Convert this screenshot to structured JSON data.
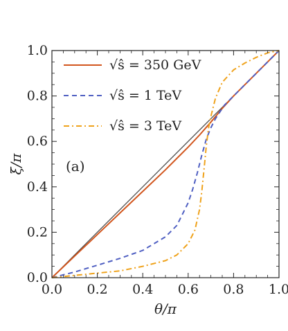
{
  "chart_data": {
    "type": "line",
    "title": "",
    "xlabel": "θ/π",
    "ylabel": "ξ/π",
    "xlim": [
      0,
      1
    ],
    "ylim": [
      0,
      1
    ],
    "xticks": [
      "0.0",
      "0.2",
      "0.4",
      "0.6",
      "0.8",
      "1.0"
    ],
    "yticks": [
      "0.0",
      "0.2",
      "0.4",
      "0.6",
      "0.8",
      "1.0"
    ],
    "annotation": "(a)",
    "legend_position": "top-left",
    "grid": false,
    "reference_line": {
      "x": [
        0,
        1
      ],
      "y": [
        0,
        1
      ],
      "color": "#444444"
    },
    "series": [
      {
        "name": "√ŝ = 350 GeV",
        "style": "solid",
        "color": "#d2561e",
        "x": [
          0.0,
          0.1,
          0.2,
          0.3,
          0.4,
          0.5,
          0.6,
          0.65,
          0.7,
          0.75,
          0.8,
          0.9,
          1.0
        ],
        "y": [
          0.0,
          0.095,
          0.19,
          0.285,
          0.38,
          0.475,
          0.575,
          0.628,
          0.685,
          0.745,
          0.8,
          0.9,
          1.0
        ]
      },
      {
        "name": "√ŝ = 1 TeV",
        "style": "dashed",
        "color": "#4f5fc2",
        "x": [
          0.0,
          0.1,
          0.2,
          0.3,
          0.4,
          0.5,
          0.55,
          0.6,
          0.62,
          0.64,
          0.66,
          0.68,
          0.7,
          0.72,
          0.74,
          0.76,
          0.8,
          0.85,
          0.9,
          0.95,
          1.0
        ],
        "y": [
          0.0,
          0.025,
          0.055,
          0.085,
          0.12,
          0.18,
          0.23,
          0.33,
          0.39,
          0.46,
          0.54,
          0.61,
          0.66,
          0.7,
          0.73,
          0.76,
          0.8,
          0.85,
          0.9,
          0.95,
          1.0
        ]
      },
      {
        "name": "√ŝ = 3 TeV",
        "style": "dash-dot",
        "color": "#efa21b",
        "x": [
          0.0,
          0.1,
          0.2,
          0.3,
          0.4,
          0.5,
          0.55,
          0.6,
          0.63,
          0.65,
          0.66,
          0.67,
          0.68,
          0.69,
          0.7,
          0.72,
          0.75,
          0.8,
          0.85,
          0.9,
          0.95,
          1.0
        ],
        "y": [
          0.0,
          0.01,
          0.02,
          0.03,
          0.05,
          0.075,
          0.1,
          0.15,
          0.21,
          0.3,
          0.38,
          0.48,
          0.58,
          0.66,
          0.71,
          0.79,
          0.86,
          0.915,
          0.945,
          0.97,
          0.99,
          1.0
        ]
      }
    ]
  }
}
